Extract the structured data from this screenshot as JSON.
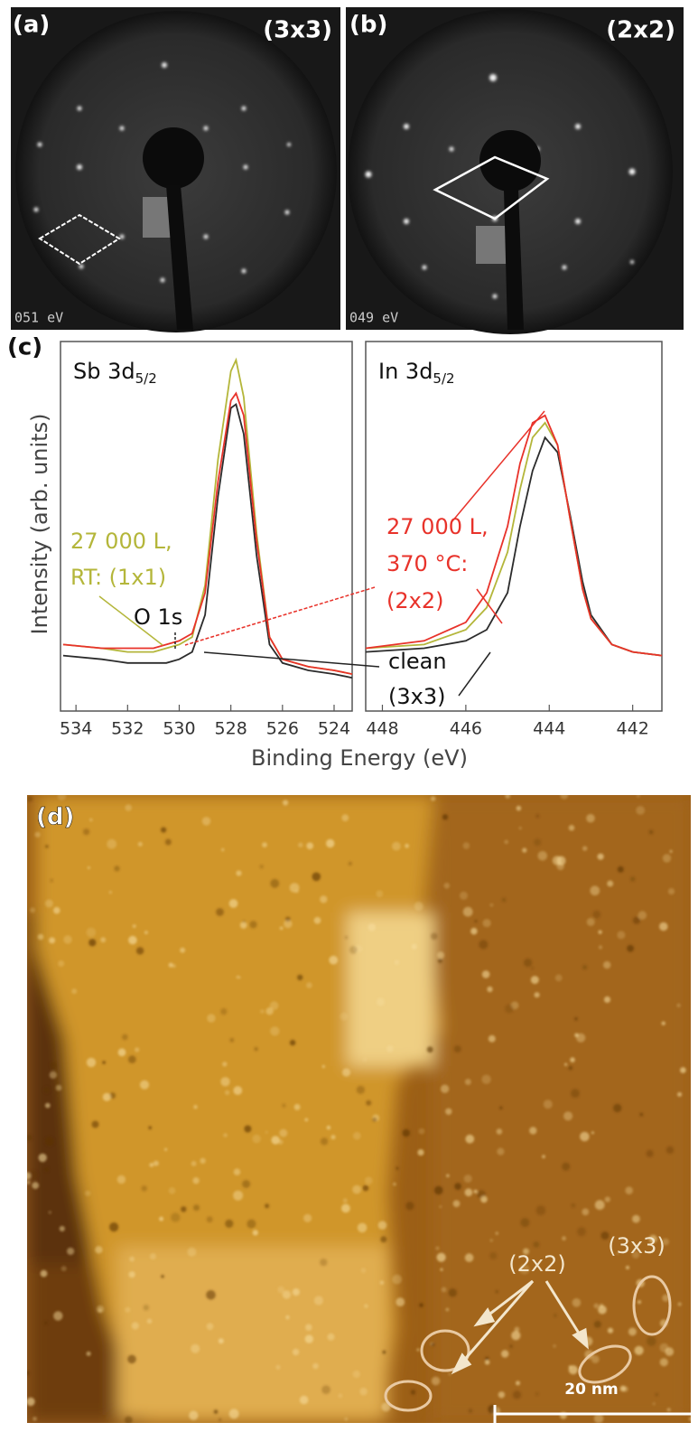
{
  "panels": {
    "a": {
      "label": "(a)",
      "pattern": "(3x3)",
      "energy": "051 eV"
    },
    "b": {
      "label": "(b)",
      "pattern": "(2x2)",
      "energy": "049 eV"
    },
    "c": {
      "label": "(c)",
      "xlabel": "Binding Energy (eV)",
      "ylabel": "Intensity (arb. units)",
      "annotations": {
        "rt": [
          "27 000 L,",
          "RT: (1x1)"
        ],
        "o1s": "O 1s",
        "heated": [
          "27 000 L,",
          "370 °C:",
          "(2x2)"
        ],
        "clean": [
          "clean",
          "(3x3)"
        ]
      }
    },
    "d": {
      "label": "(d)",
      "regions": [
        "(3x3)",
        "(2x2)"
      ],
      "scale_bar": "20 nm"
    }
  },
  "chart_data": [
    {
      "type": "line",
      "title": "Sb 3d",
      "title_sub": "5/2",
      "x": [
        534.5,
        533,
        532,
        531,
        530.5,
        530,
        529.5,
        529,
        528.5,
        528,
        527.8,
        527.5,
        527,
        526.5,
        526,
        525,
        524,
        523.3
      ],
      "series": [
        {
          "color": "#2b2b2b",
          "values": [
            15,
            14,
            13,
            13,
            13,
            14,
            16,
            26,
            58,
            82,
            83,
            75,
            42,
            18,
            13,
            11,
            10,
            9
          ]
        },
        {
          "color": "#b4b63a",
          "values": [
            18,
            17,
            16,
            16,
            17,
            18,
            20,
            34,
            68,
            92,
            95,
            85,
            48,
            20,
            14,
            12,
            11,
            10
          ]
        },
        {
          "color": "#e8322a",
          "values": [
            18,
            17,
            17,
            17,
            18,
            19,
            21,
            32,
            62,
            84,
            86,
            80,
            46,
            20,
            14,
            12,
            11,
            10
          ]
        }
      ],
      "xlim": [
        534.6,
        523.3
      ],
      "xticks": [
        534,
        532,
        530,
        528,
        526,
        524
      ],
      "ylim": [
        0,
        100
      ]
    },
    {
      "type": "line",
      "title": "In 3d",
      "title_sub": "5/2",
      "x": [
        448.4,
        447,
        446,
        445.5,
        445,
        444.7,
        444.4,
        444.1,
        443.8,
        443.5,
        443.2,
        443,
        442.5,
        442,
        441.3
      ],
      "series": [
        {
          "color": "#2b2b2b",
          "values": [
            16,
            17,
            19,
            22,
            32,
            50,
            65,
            74,
            70,
            53,
            35,
            26,
            18,
            16,
            15
          ]
        },
        {
          "color": "#b4b63a",
          "values": [
            17,
            18,
            22,
            28,
            43,
            60,
            74,
            78,
            72,
            52,
            33,
            25,
            18,
            16,
            15
          ]
        },
        {
          "color": "#e8322a",
          "values": [
            17,
            19,
            24,
            32,
            50,
            67,
            78,
            80,
            72,
            52,
            33,
            25,
            18,
            16,
            15
          ]
        }
      ],
      "xlim": [
        448.4,
        441.3
      ],
      "xticks": [
        448,
        446,
        444,
        442
      ],
      "ylim": [
        0,
        100
      ]
    }
  ]
}
